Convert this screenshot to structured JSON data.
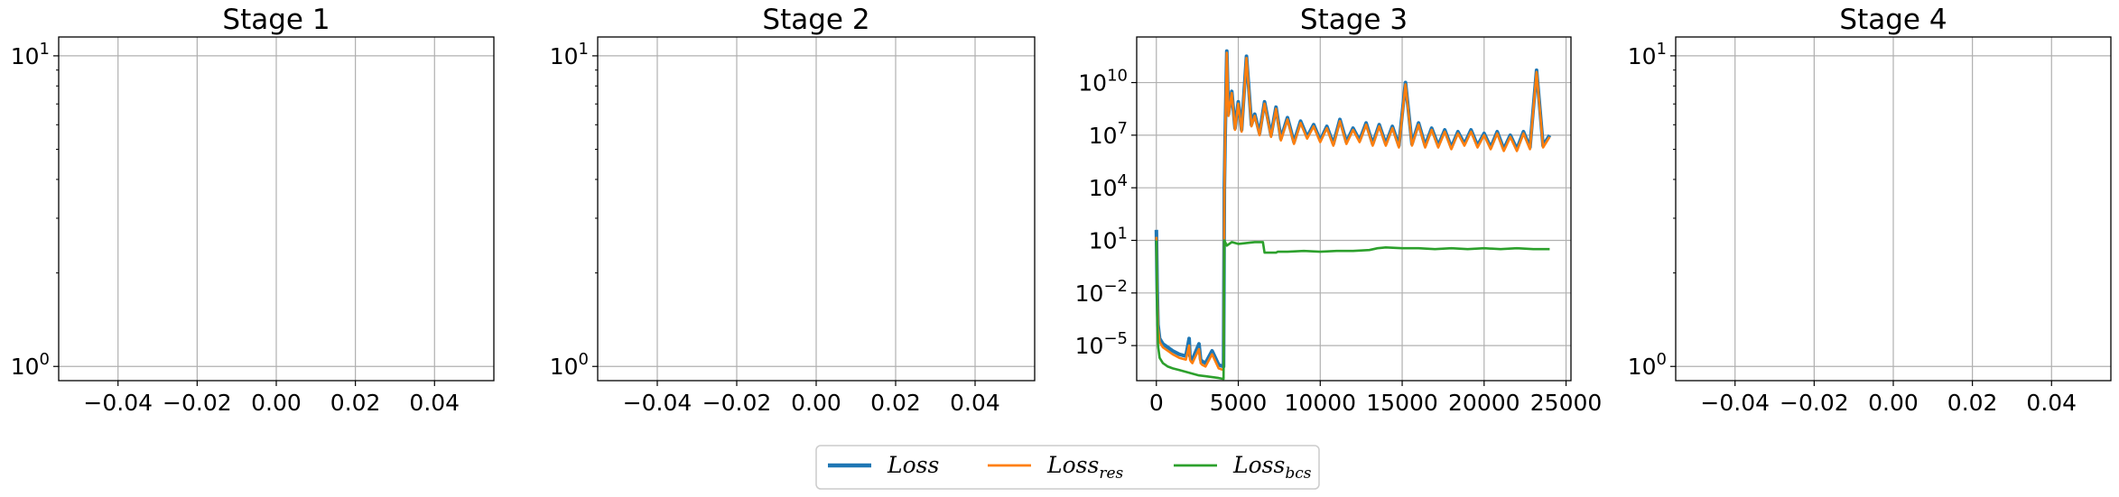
{
  "colors": {
    "loss": "#1f77b4",
    "loss_res": "#ff7f0e",
    "loss_bcs": "#2ca02c",
    "grid": "#b0b0b0",
    "axis": "#000000"
  },
  "legend": {
    "placement": "bottom-center",
    "items": [
      {
        "base": "Loss",
        "sub": "",
        "color": "#1f77b4"
      },
      {
        "base": "Loss",
        "sub": "res",
        "color": "#ff7f0e"
      },
      {
        "base": "Loss",
        "sub": "bcs",
        "color": "#2ca02c"
      }
    ]
  },
  "chart_data": [
    {
      "type": "line",
      "title": "Stage 1",
      "xlabel": "",
      "ylabel": "",
      "yscale": "log",
      "xlim": [
        -0.055,
        0.055
      ],
      "ylim": [
        0.9,
        11.5
      ],
      "x_ticks": [
        -0.04,
        -0.02,
        0.0,
        0.02,
        0.04
      ],
      "x_tick_labels": [
        "−0.04",
        "−0.02",
        "0.00",
        "0.02",
        "0.04"
      ],
      "y_ticks": [
        {
          "base": "10",
          "exp": "0",
          "value": 1
        },
        {
          "base": "10",
          "exp": "1",
          "value": 10
        }
      ],
      "grid": true,
      "series": []
    },
    {
      "type": "line",
      "title": "Stage 2",
      "xlabel": "",
      "ylabel": "",
      "yscale": "log",
      "xlim": [
        -0.055,
        0.055
      ],
      "ylim": [
        0.9,
        11.5
      ],
      "x_ticks": [
        -0.04,
        -0.02,
        0.0,
        0.02,
        0.04
      ],
      "x_tick_labels": [
        "−0.04",
        "−0.02",
        "0.00",
        "0.02",
        "0.04"
      ],
      "y_ticks": [
        {
          "base": "10",
          "exp": "0",
          "value": 1
        },
        {
          "base": "10",
          "exp": "1",
          "value": 10
        }
      ],
      "grid": true,
      "series": []
    },
    {
      "type": "line",
      "title": "Stage 3",
      "xlabel": "",
      "ylabel": "",
      "yscale": "log",
      "xlim": [
        -1200,
        25300
      ],
      "ylim_log10": [
        -7.0,
        12.6
      ],
      "x_ticks": [
        0,
        5000,
        10000,
        15000,
        20000,
        25000
      ],
      "x_tick_labels": [
        "0",
        "5000",
        "10000",
        "15000",
        "20000",
        "25000"
      ],
      "y_ticks": [
        {
          "base": "10",
          "exp": "−5",
          "value": -5
        },
        {
          "base": "10",
          "exp": "−2",
          "value": -2
        },
        {
          "base": "10",
          "exp": "1",
          "value": 1
        },
        {
          "base": "10",
          "exp": "4",
          "value": 4
        },
        {
          "base": "10",
          "exp": "7",
          "value": 7
        },
        {
          "base": "10",
          "exp": "10",
          "value": 10
        }
      ],
      "grid": true,
      "series": [
        {
          "name": "Loss",
          "color": "#1f77b4",
          "x": [
            0,
            50,
            100,
            200,
            400,
            700,
            1000,
            1400,
            1800,
            2000,
            2050,
            2100,
            2200,
            2600,
            2700,
            2800,
            3000,
            3400,
            3800,
            4100,
            4150,
            4200,
            4300,
            4400,
            4600,
            4800,
            5000,
            5200,
            5500,
            5800,
            6000,
            6300,
            6600,
            7000,
            7300,
            7600,
            8000,
            8400,
            8800,
            9200,
            9600,
            10000,
            10400,
            10800,
            11200,
            11600,
            12000,
            12400,
            12800,
            13200,
            13600,
            14000,
            14400,
            14800,
            15200,
            15600,
            16000,
            16400,
            16800,
            17200,
            17600,
            18000,
            18400,
            18800,
            19200,
            19600,
            20000,
            20400,
            20800,
            21200,
            21600,
            22000,
            22400,
            22800,
            23200,
            23600,
            24000
          ],
          "y_log10": [
            1.6,
            -1.8,
            -3.8,
            -4.6,
            -4.9,
            -5.1,
            -5.3,
            -5.5,
            -5.6,
            -4.6,
            -5.6,
            -5.7,
            -5.8,
            -4.9,
            -5.8,
            -5.9,
            -6.0,
            -5.3,
            -6.1,
            -6.2,
            4.0,
            7.0,
            11.8,
            8.2,
            9.5,
            7.4,
            8.9,
            7.3,
            11.5,
            7.6,
            8.2,
            7.1,
            8.9,
            7.0,
            8.6,
            6.8,
            8.0,
            6.6,
            7.8,
            6.9,
            7.6,
            6.7,
            7.5,
            6.5,
            7.9,
            6.6,
            7.4,
            6.7,
            7.7,
            6.5,
            7.6,
            6.5,
            7.5,
            6.4,
            10.0,
            6.5,
            7.7,
            6.4,
            7.4,
            6.4,
            7.3,
            6.3,
            7.2,
            6.5,
            7.3,
            6.4,
            7.1,
            6.3,
            7.2,
            6.2,
            7.0,
            6.2,
            7.2,
            6.3,
            10.7,
            6.4,
            7.0
          ]
        },
        {
          "name": "Loss_res",
          "color": "#ff7f0e",
          "x": [
            0,
            50,
            100,
            200,
            400,
            700,
            1000,
            1400,
            1800,
            2000,
            2050,
            2100,
            2200,
            2600,
            2700,
            2800,
            3000,
            3400,
            3800,
            4100,
            4150,
            4200,
            4300,
            4400,
            4600,
            4800,
            5000,
            5200,
            5500,
            5800,
            6000,
            6300,
            6600,
            7000,
            7300,
            7600,
            8000,
            8400,
            8800,
            9200,
            9600,
            10000,
            10400,
            10800,
            11200,
            11600,
            12000,
            12400,
            12800,
            13200,
            13600,
            14000,
            14400,
            14800,
            15200,
            15600,
            16000,
            16400,
            16800,
            17200,
            17600,
            18000,
            18400,
            18800,
            19200,
            19600,
            20000,
            20400,
            20800,
            21200,
            21600,
            22000,
            22400,
            22800,
            23200,
            23600,
            24000
          ],
          "y_log10": [
            1.2,
            -2.0,
            -4.0,
            -4.8,
            -5.1,
            -5.3,
            -5.5,
            -5.7,
            -5.8,
            -5.0,
            -5.8,
            -5.9,
            -6.0,
            -5.2,
            -6.0,
            -6.1,
            -6.2,
            -5.5,
            -6.3,
            -6.4,
            3.5,
            7.0,
            11.7,
            8.1,
            9.4,
            7.3,
            8.8,
            7.2,
            11.4,
            7.5,
            8.1,
            7.0,
            8.8,
            6.9,
            8.5,
            6.7,
            7.9,
            6.5,
            7.7,
            6.8,
            7.5,
            6.6,
            7.4,
            6.4,
            7.8,
            6.5,
            7.3,
            6.6,
            7.6,
            6.4,
            7.5,
            6.4,
            7.4,
            6.3,
            9.9,
            6.4,
            7.6,
            6.3,
            7.3,
            6.3,
            7.2,
            6.2,
            7.1,
            6.4,
            7.2,
            6.3,
            7.0,
            6.2,
            7.1,
            6.1,
            6.9,
            6.1,
            7.1,
            6.2,
            10.6,
            6.3,
            6.9
          ]
        },
        {
          "name": "Loss_bcs",
          "color": "#2ca02c",
          "x": [
            0,
            50,
            100,
            200,
            400,
            700,
            1000,
            1400,
            1800,
            2200,
            2600,
            3000,
            3400,
            3800,
            4100,
            4150,
            4300,
            4600,
            5000,
            5500,
            6000,
            6500,
            6600,
            7300,
            7400,
            8000,
            9000,
            10000,
            11000,
            12000,
            13000,
            13500,
            14000,
            15000,
            16000,
            17000,
            18000,
            19000,
            20000,
            21000,
            22000,
            23000,
            24000
          ],
          "y_log10": [
            1.0,
            -3.2,
            -5.0,
            -5.7,
            -6.0,
            -6.2,
            -6.3,
            -6.4,
            -6.5,
            -6.6,
            -6.7,
            -6.75,
            -6.8,
            -6.85,
            -6.9,
            1.0,
            0.7,
            0.9,
            0.8,
            0.85,
            0.9,
            0.9,
            0.3,
            0.3,
            0.35,
            0.35,
            0.4,
            0.35,
            0.4,
            0.4,
            0.45,
            0.55,
            0.6,
            0.55,
            0.55,
            0.5,
            0.55,
            0.5,
            0.55,
            0.5,
            0.55,
            0.5,
            0.5
          ]
        }
      ]
    },
    {
      "type": "line",
      "title": "Stage 4",
      "xlabel": "",
      "ylabel": "",
      "yscale": "log",
      "xlim": [
        -0.055,
        0.055
      ],
      "ylim": [
        0.9,
        11.5
      ],
      "x_ticks": [
        -0.04,
        -0.02,
        0.0,
        0.02,
        0.04
      ],
      "x_tick_labels": [
        "−0.04",
        "−0.02",
        "0.00",
        "0.02",
        "0.04"
      ],
      "y_ticks": [
        {
          "base": "10",
          "exp": "0",
          "value": 1
        },
        {
          "base": "10",
          "exp": "1",
          "value": 10
        }
      ],
      "grid": true,
      "series": []
    }
  ]
}
